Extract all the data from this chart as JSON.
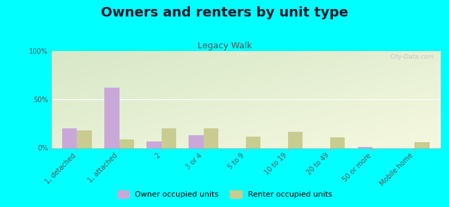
{
  "title": "Owners and renters by unit type",
  "subtitle": "Legacy Walk",
  "categories": [
    "1, detached",
    "1, attached",
    "2",
    "3 or 4",
    "5 to 9",
    "10 to 19",
    "20 to 49",
    "50 or more",
    "Mobile home"
  ],
  "owner_values": [
    20,
    62,
    7,
    13,
    0,
    0,
    0,
    1,
    0
  ],
  "renter_values": [
    18,
    9,
    20,
    20,
    12,
    17,
    11,
    0,
    6
  ],
  "owner_color": "#c8a8d8",
  "renter_color": "#c8cc90",
  "bg_color": "#00ffff",
  "plot_bg_top_left": "#d8e8c8",
  "plot_bg_bottom_right": "#f5f8e0",
  "ylabel_ticks": [
    "0%",
    "50%",
    "100%"
  ],
  "ytick_vals": [
    0,
    50,
    100
  ],
  "ylim": [
    0,
    100
  ],
  "legend_owner": "Owner occupied units",
  "legend_renter": "Renter occupied units",
  "bar_width": 0.35,
  "title_fontsize": 14,
  "subtitle_fontsize": 9,
  "tick_fontsize": 7,
  "watermark": "City-Data.com"
}
